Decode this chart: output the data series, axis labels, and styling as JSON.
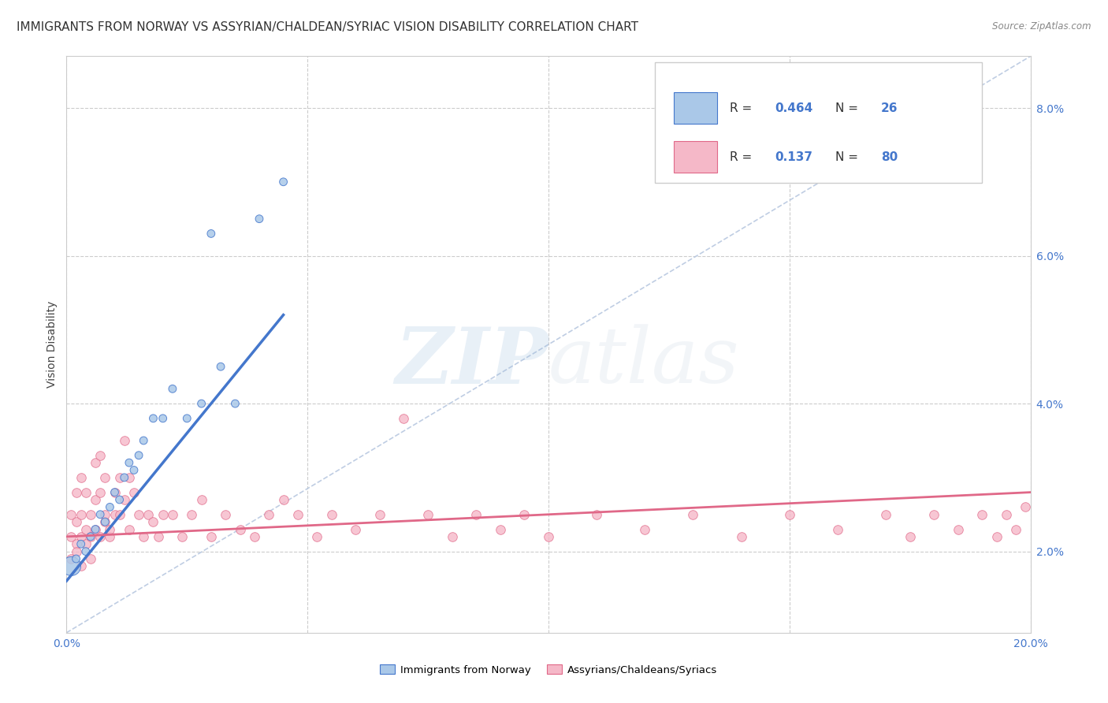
{
  "title": "IMMIGRANTS FROM NORWAY VS ASSYRIAN/CHALDEAN/SYRIAC VISION DISABILITY CORRELATION CHART",
  "source": "Source: ZipAtlas.com",
  "ylabel": "Vision Disability",
  "xlim": [
    0.0,
    0.2
  ],
  "ylim": [
    0.009,
    0.087
  ],
  "yticks": [
    0.02,
    0.04,
    0.06,
    0.08
  ],
  "ytick_labels": [
    "2.0%",
    "4.0%",
    "6.0%",
    "8.0%"
  ],
  "xticks": [
    0.0,
    0.05,
    0.1,
    0.15,
    0.2
  ],
  "xtick_labels": [
    "0.0%",
    "",
    "",
    "",
    "20.0%"
  ],
  "blue_R": "0.464",
  "blue_N": "26",
  "pink_R": "0.137",
  "pink_N": "80",
  "blue_dot_color": "#aac8e8",
  "pink_dot_color": "#f5b8c8",
  "blue_line_color": "#4477cc",
  "pink_line_color": "#e06888",
  "ref_line_color": "#b8c8e0",
  "legend_blue_label": "Immigrants from Norway",
  "legend_pink_label": "Assyrians/Chaldeans/Syriacs",
  "blue_scatter_x": [
    0.001,
    0.002,
    0.003,
    0.004,
    0.005,
    0.006,
    0.007,
    0.008,
    0.009,
    0.01,
    0.011,
    0.012,
    0.013,
    0.014,
    0.015,
    0.016,
    0.018,
    0.02,
    0.022,
    0.025,
    0.028,
    0.03,
    0.032,
    0.035,
    0.04,
    0.045
  ],
  "blue_scatter_y": [
    0.018,
    0.019,
    0.021,
    0.02,
    0.022,
    0.023,
    0.025,
    0.024,
    0.026,
    0.028,
    0.027,
    0.03,
    0.032,
    0.031,
    0.033,
    0.035,
    0.038,
    0.038,
    0.042,
    0.038,
    0.04,
    0.063,
    0.045,
    0.04,
    0.065,
    0.07
  ],
  "pink_scatter_x": [
    0.001,
    0.001,
    0.001,
    0.002,
    0.002,
    0.002,
    0.002,
    0.003,
    0.003,
    0.003,
    0.003,
    0.004,
    0.004,
    0.004,
    0.005,
    0.005,
    0.005,
    0.006,
    0.006,
    0.006,
    0.007,
    0.007,
    0.007,
    0.008,
    0.008,
    0.008,
    0.009,
    0.009,
    0.01,
    0.01,
    0.011,
    0.011,
    0.012,
    0.012,
    0.013,
    0.013,
    0.014,
    0.015,
    0.016,
    0.017,
    0.018,
    0.019,
    0.02,
    0.022,
    0.024,
    0.026,
    0.028,
    0.03,
    0.033,
    0.036,
    0.039,
    0.042,
    0.045,
    0.048,
    0.052,
    0.055,
    0.06,
    0.065,
    0.07,
    0.075,
    0.08,
    0.085,
    0.09,
    0.095,
    0.1,
    0.11,
    0.12,
    0.13,
    0.14,
    0.15,
    0.16,
    0.17,
    0.175,
    0.18,
    0.185,
    0.19,
    0.193,
    0.195,
    0.197,
    0.199
  ],
  "pink_scatter_y": [
    0.022,
    0.019,
    0.025,
    0.021,
    0.02,
    0.024,
    0.028,
    0.022,
    0.025,
    0.018,
    0.03,
    0.021,
    0.023,
    0.028,
    0.022,
    0.025,
    0.019,
    0.023,
    0.027,
    0.032,
    0.022,
    0.028,
    0.033,
    0.024,
    0.03,
    0.025,
    0.022,
    0.023,
    0.028,
    0.025,
    0.025,
    0.03,
    0.027,
    0.035,
    0.023,
    0.03,
    0.028,
    0.025,
    0.022,
    0.025,
    0.024,
    0.022,
    0.025,
    0.025,
    0.022,
    0.025,
    0.027,
    0.022,
    0.025,
    0.023,
    0.022,
    0.025,
    0.027,
    0.025,
    0.022,
    0.025,
    0.023,
    0.025,
    0.038,
    0.025,
    0.022,
    0.025,
    0.023,
    0.025,
    0.022,
    0.025,
    0.023,
    0.025,
    0.022,
    0.025,
    0.023,
    0.025,
    0.022,
    0.025,
    0.023,
    0.025,
    0.022,
    0.025,
    0.023,
    0.026
  ],
  "background_color": "#ffffff",
  "grid_color": "#cccccc",
  "title_color": "#333333",
  "tick_color": "#4477cc",
  "title_fontsize": 11,
  "tick_fontsize": 10,
  "ylabel_fontsize": 10
}
